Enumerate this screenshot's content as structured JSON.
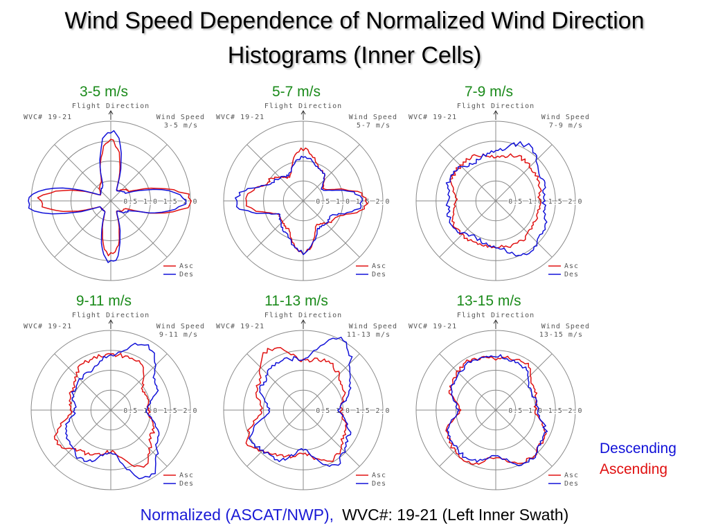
{
  "title_line1": "Wind Speed Dependence of Normalized Wind Direction",
  "title_line2": "Histograms (Inner Cells)",
  "side_legend": {
    "descending": "Descending",
    "ascending": "Ascending"
  },
  "footer": {
    "left": "Normalized (ASCAT/NWP),",
    "right": "WVC#: 19-21 (Left Inner Swath)"
  },
  "colors": {
    "asc": "#e01010",
    "des": "#1010d8",
    "panel_title": "#1a8a1a",
    "grid": "#888888"
  },
  "chart_data": [
    {
      "type": "polar-line",
      "panel_label": "3-5 m/s",
      "header_left": "Flight Direction",
      "wvc": "WVC# 19-21",
      "speed_label": "Wind Speed",
      "speed_value": "3-5 m/s",
      "ring_labels": [
        "0.5",
        "1.0",
        "1.5",
        "2.0"
      ],
      "rlim": [
        0,
        2.0
      ],
      "legend": [
        "Asc",
        "Des"
      ],
      "theta_deg": [
        0,
        30,
        60,
        90,
        120,
        150,
        180,
        210,
        240,
        270,
        300,
        330
      ],
      "series": [
        {
          "name": "Asc",
          "r": [
            1.5,
            0.3,
            0.5,
            2.0,
            0.4,
            0.3,
            1.35,
            0.3,
            0.3,
            1.8,
            0.3,
            0.5
          ]
        },
        {
          "name": "Des",
          "r": [
            1.75,
            0.3,
            0.4,
            1.85,
            0.5,
            0.3,
            1.55,
            0.3,
            0.3,
            2.15,
            0.3,
            0.4
          ]
        }
      ]
    },
    {
      "type": "polar-line",
      "panel_label": "5-7 m/s",
      "header_left": "Flight Direction",
      "wvc": "WVC# 19-21",
      "speed_label": "Wind Speed",
      "speed_value": "5-7 m/s",
      "ring_labels": [
        "0.5",
        "1.0",
        "1.5",
        "2.0"
      ],
      "rlim": [
        0,
        2.0
      ],
      "legend": [
        "Asc",
        "Des"
      ],
      "theta_deg": [
        0,
        30,
        60,
        90,
        120,
        150,
        180,
        210,
        240,
        270,
        300,
        330
      ],
      "series": [
        {
          "name": "Asc",
          "r": [
            1.3,
            0.9,
            0.6,
            1.6,
            0.9,
            0.7,
            1.3,
            0.8,
            0.7,
            1.45,
            1.0,
            0.7
          ]
        },
        {
          "name": "Des",
          "r": [
            1.1,
            0.9,
            0.55,
            1.5,
            0.8,
            0.8,
            1.3,
            0.9,
            0.7,
            1.7,
            0.9,
            0.75
          ]
        }
      ]
    },
    {
      "type": "polar-line",
      "panel_label": "7-9 m/s",
      "header_left": "Flight Direction",
      "wvc": "WVC# 19-21",
      "speed_label": "Wind Speed",
      "speed_value": "7-9 m/s",
      "ring_labels": [
        "0.5",
        "1.0",
        "1.5",
        "2.0"
      ],
      "rlim": [
        0,
        2.0
      ],
      "legend": [
        "Asc",
        "Des"
      ],
      "theta_deg": [
        0,
        30,
        60,
        90,
        120,
        150,
        180,
        210,
        240,
        270,
        300,
        330
      ],
      "series": [
        {
          "name": "Asc",
          "r": [
            1.1,
            1.25,
            1.2,
            1.1,
            1.1,
            1.2,
            1.15,
            1.2,
            1.2,
            1.0,
            1.25,
            1.25
          ]
        },
        {
          "name": "Des",
          "r": [
            1.25,
            1.6,
            1.3,
            1.2,
            1.4,
            1.55,
            1.15,
            1.05,
            1.25,
            1.2,
            1.3,
            1.1
          ]
        }
      ]
    },
    {
      "type": "polar-line",
      "panel_label": "9-11 m/s",
      "header_left": "Flight Direction",
      "wvc": "WVC# 19-21",
      "speed_label": "Wind Speed",
      "speed_value": "9-11 m/s",
      "ring_labels": [
        "0.5",
        "1.0",
        "1.5",
        "2.0"
      ],
      "rlim": [
        0,
        2.0
      ],
      "legend": [
        "Asc",
        "Des"
      ],
      "theta_deg": [
        0,
        30,
        60,
        90,
        120,
        150,
        180,
        210,
        240,
        270,
        300,
        330
      ],
      "series": [
        {
          "name": "Asc",
          "r": [
            1.4,
            1.4,
            0.95,
            0.95,
            1.2,
            1.6,
            1.05,
            1.25,
            1.55,
            1.0,
            1.1,
            1.35
          ]
        },
        {
          "name": "Des",
          "r": [
            1.35,
            1.85,
            1.3,
            0.9,
            1.35,
            1.95,
            1.05,
            1.45,
            1.3,
            0.9,
            1.05,
            1.1
          ]
        }
      ]
    },
    {
      "type": "polar-line",
      "panel_label": "11-13 m/s",
      "header_left": "Flight Direction",
      "wvc": "WVC# 19-21",
      "speed_label": "Wind Speed",
      "speed_value": "11-13 m/s",
      "ring_labels": [
        "0.5",
        "1.0",
        "1.5",
        "2.0"
      ],
      "rlim": [
        0,
        2.0
      ],
      "legend": [
        "Asc",
        "Des"
      ],
      "theta_deg": [
        0,
        30,
        60,
        90,
        120,
        150,
        180,
        210,
        240,
        270,
        300,
        330
      ],
      "series": [
        {
          "name": "Asc",
          "r": [
            1.25,
            1.35,
            1.15,
            0.95,
            1.2,
            1.45,
            1.1,
            1.3,
            1.6,
            1.05,
            1.3,
            1.75
          ]
        },
        {
          "name": "Des",
          "r": [
            1.3,
            2.0,
            1.35,
            0.9,
            1.3,
            1.6,
            1.0,
            1.4,
            1.5,
            0.85,
            1.2,
            1.35
          ]
        }
      ]
    },
    {
      "type": "polar-line",
      "panel_label": "13-15 m/s",
      "header_left": "Flight Direction",
      "wvc": "WVC# 19-21",
      "speed_label": "Wind Speed",
      "speed_value": "13-15 m/s",
      "ring_labels": [
        "0.5",
        "1.0",
        "1.5",
        "2.0"
      ],
      "rlim": [
        0,
        2.0
      ],
      "legend": [
        "Asc",
        "Des"
      ],
      "theta_deg": [
        0,
        30,
        60,
        90,
        120,
        150,
        180,
        210,
        240,
        270,
        300,
        330
      ],
      "series": [
        {
          "name": "Asc",
          "r": [
            1.3,
            1.4,
            1.1,
            1.0,
            1.4,
            1.5,
            1.2,
            1.5,
            1.4,
            0.9,
            1.3,
            1.4
          ]
        },
        {
          "name": "Des",
          "r": [
            1.35,
            1.3,
            1.0,
            1.05,
            1.4,
            1.55,
            1.15,
            1.4,
            1.35,
            0.95,
            1.25,
            1.35
          ]
        }
      ]
    }
  ]
}
